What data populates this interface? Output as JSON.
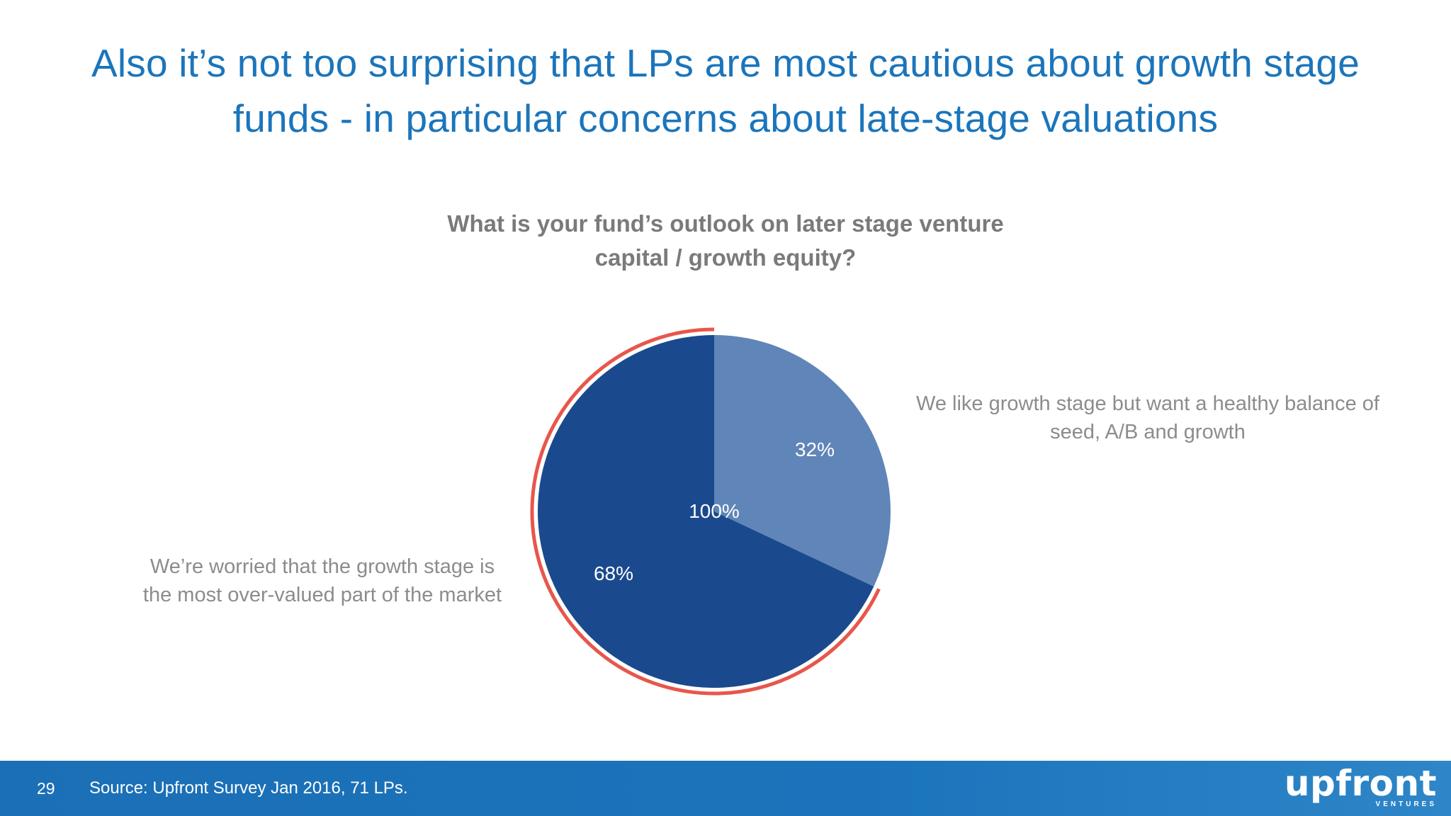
{
  "slide": {
    "title_lines": [
      "Also it’s not too surprising that LPs are most cautious about growth stage",
      "funds - in particular concerns about late-stage valuations"
    ]
  },
  "chart_data": {
    "type": "pie",
    "title_lines": [
      "What is your fund’s outlook on later stage venture",
      "capital / growth equity?"
    ],
    "center_label": "100%",
    "slices": [
      {
        "label_lines": [
          "We like growth stage but want a healthy balance of",
          "seed, A/B and growth"
        ],
        "value": 32,
        "value_label": "32%",
        "color": "#6085b8"
      },
      {
        "label_lines": [
          "We’re worried that the growth stage is",
          "the most over-valued part of the market"
        ],
        "value": 68,
        "value_label": "68%",
        "color": "#1a4a8d",
        "highlighted": true
      }
    ],
    "highlight_color": "#e8564b"
  },
  "footer": {
    "page_number": "29",
    "source": "Source: Upfront Survey Jan 2016, 71 LPs.",
    "logo_text": "upfront",
    "logo_subtext": "VENTURES"
  }
}
